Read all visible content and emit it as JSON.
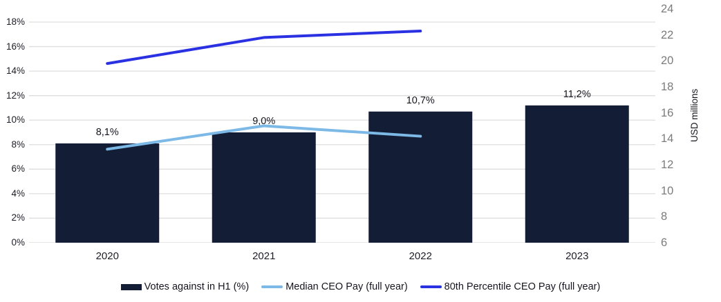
{
  "chart_data": {
    "type": "bar",
    "subtype": "combo-bar-line-dual-axis",
    "categories": [
      "2020",
      "2021",
      "2022",
      "2023"
    ],
    "series": [
      {
        "name": "Votes against in H1 (%)",
        "type": "bar",
        "axis": "left",
        "values": [
          8.1,
          9.0,
          10.7,
          11.2
        ],
        "data_labels": [
          "8,1%",
          "9,0%",
          "10,7%",
          "11,2%"
        ],
        "color": "#131d36"
      },
      {
        "name": "Median CEO Pay (full year)",
        "type": "line",
        "axis": "right",
        "values": [
          13.2,
          15.0,
          14.2,
          null
        ],
        "color": "#7db9e6"
      },
      {
        "name": "80th Percentile CEO Pay (full year)",
        "type": "line",
        "axis": "right",
        "values": [
          19.8,
          21.8,
          22.3,
          null
        ],
        "color": "#2a31e2"
      }
    ],
    "left_axis": {
      "min": 0,
      "max": 18,
      "tick_values": [
        0,
        2,
        4,
        6,
        8,
        10,
        12,
        14,
        16,
        18
      ],
      "tick_labels": [
        "0%",
        "2%",
        "4%",
        "6%",
        "8%",
        "10%",
        "12%",
        "14%",
        "16%",
        "18%"
      ]
    },
    "right_axis": {
      "min": 6,
      "max": 24,
      "tick_values": [
        6,
        8,
        10,
        12,
        14,
        16,
        18,
        20,
        22,
        24
      ],
      "tick_labels": [
        "6",
        "8",
        "10",
        "12",
        "14",
        "16",
        "18",
        "20",
        "22",
        "24"
      ],
      "label": "USD millions"
    },
    "title": "",
    "xlabel": "",
    "ylabel_left": "",
    "ylabel_right": "USD millions",
    "grid": true,
    "legend_position": "bottom"
  },
  "colors": {
    "background": "#ffffff",
    "gridline": "#dedede",
    "axis_line": "#d6d6d6",
    "axis_text": "#1d1d27",
    "right_axis_text": "#7b7b7b",
    "data_label_text": "#15151f"
  }
}
